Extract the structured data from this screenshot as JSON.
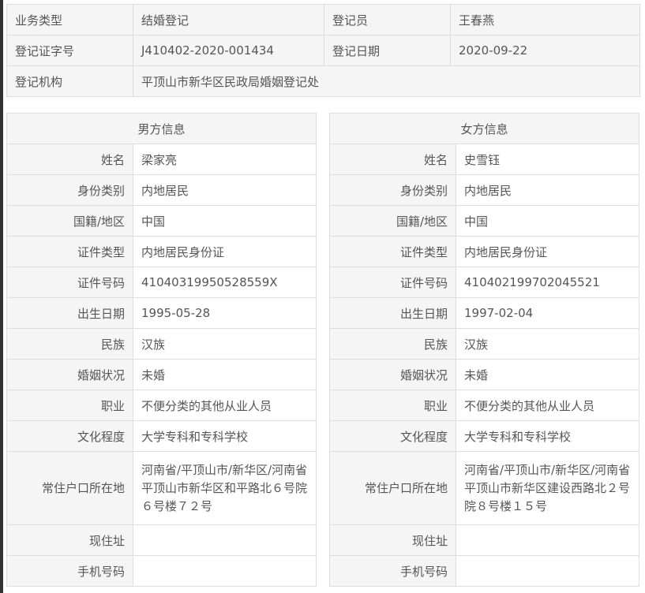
{
  "summary": {
    "business_type_label": "业务类型",
    "business_type": "结婚登记",
    "registrar_label": "登记员",
    "registrar": "王春燕",
    "cert_no_label": "登记证字号",
    "cert_no": "J410402-2020-001434",
    "date_label": "登记日期",
    "date": "2020-09-22",
    "agency_label": "登记机构",
    "agency": "平顶山市新华区民政局婚姻登记处"
  },
  "labels": [
    "姓名",
    "身份类别",
    "国籍/地区",
    "证件类型",
    "证件号码",
    "出生日期",
    "民族",
    "婚姻状况",
    "职业",
    "文化程度",
    "常住户口所在地",
    "现住址",
    "手机号码"
  ],
  "male": {
    "title": "男方信息",
    "values": [
      "梁家亮",
      "内地居民",
      "中国",
      "内地居民身份证",
      "41040319950528559X",
      "1995-05-28",
      "汉族",
      "未婚",
      "不便分类的其他从业人员",
      "大学专科和专科学校",
      "河南省/平顶山市/新华区/河南省平顶山市新华区和平路北６号院６号楼７２号",
      "",
      ""
    ]
  },
  "female": {
    "title": "女方信息",
    "values": [
      "史雪钰",
      "内地居民",
      "中国",
      "内地居民身份证",
      "410402199702045521",
      "1997-02-04",
      "汉族",
      "未婚",
      "不便分类的其他从业人员",
      "大学专科和专科学校",
      "河南省/平顶山市/新华区/河南省平顶山市新华区建设西路北２号院８号楼１５号",
      "",
      ""
    ]
  }
}
